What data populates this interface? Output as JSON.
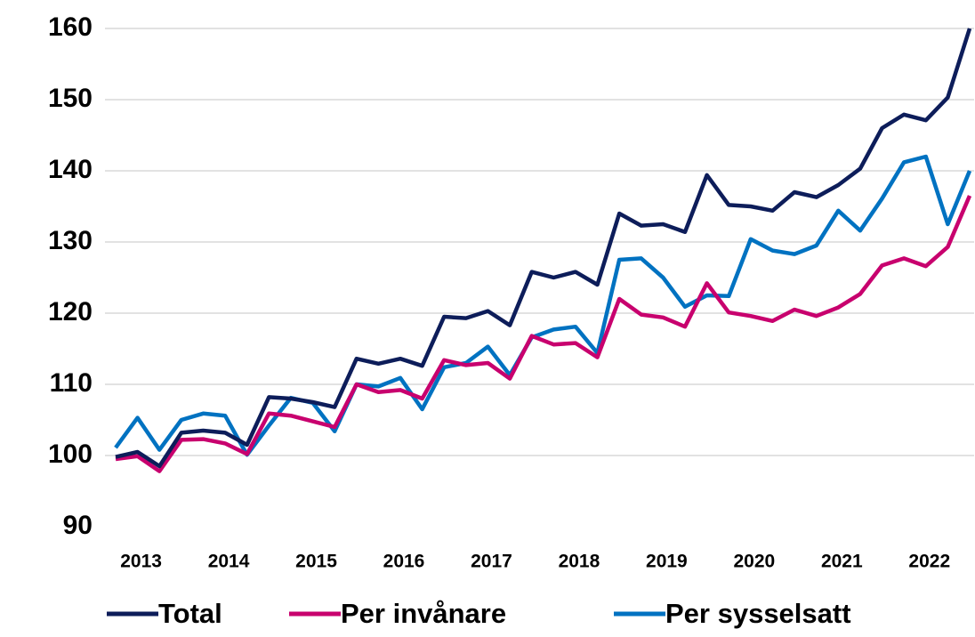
{
  "chart_data": {
    "type": "line",
    "categories": [
      null,
      "2013",
      null,
      null,
      null,
      "2014",
      null,
      null,
      null,
      "2015",
      null,
      null,
      null,
      "2016",
      null,
      null,
      null,
      "2017",
      null,
      null,
      null,
      "2018",
      null,
      null,
      null,
      "2019",
      null,
      null,
      null,
      "2020",
      null,
      null,
      null,
      "2021",
      null,
      null,
      null,
      "2022",
      null,
      null
    ],
    "series": [
      {
        "name": "Total",
        "color": "#0d1d5a",
        "values": [
          99.8,
          100.5,
          98.5,
          103.2,
          103.5,
          103.2,
          101.5,
          108.2,
          108,
          107.5,
          106.8,
          113.6,
          112.9,
          113.6,
          112.6,
          119.5,
          119.3,
          120.3,
          118.3,
          125.8,
          125,
          125.8,
          124,
          134,
          132.3,
          132.5,
          131.4,
          139.4,
          135.2,
          135,
          134.4,
          137,
          136.3,
          138,
          140.3,
          146,
          147.9,
          147.1,
          150.3,
          160
        ]
      },
      {
        "name": "Per invånare",
        "color": "#c8006e",
        "values": [
          99.5,
          99.9,
          97.8,
          102.2,
          102.3,
          101.7,
          100.2,
          105.9,
          105.6,
          104.8,
          104,
          110,
          108.9,
          109.2,
          108,
          113.4,
          112.7,
          113,
          110.8,
          116.8,
          115.6,
          115.8,
          113.8,
          122,
          119.8,
          119.4,
          118.1,
          124.2,
          120.1,
          119.6,
          118.9,
          120.5,
          119.6,
          120.8,
          122.7,
          126.7,
          127.7,
          126.6,
          129.3,
          136.5
        ]
      },
      {
        "name": "Per sysselsatt",
        "color": "#0072c1",
        "values": [
          101.1,
          105.3,
          100.8,
          105,
          105.9,
          105.6,
          100.1,
          104.2,
          108.1,
          107.4,
          103.4,
          110,
          109.7,
          110.9,
          106.5,
          112.4,
          113,
          115.3,
          111.3,
          116.6,
          117.7,
          118.1,
          114.4,
          127.5,
          127.7,
          125,
          120.9,
          122.5,
          122.4,
          130.4,
          128.8,
          128.3,
          129.5,
          134.4,
          131.6,
          136.1,
          141.2,
          142,
          132.5,
          140
        ]
      }
    ],
    "ylim": [
      90,
      160
    ],
    "yticks": [
      90,
      100,
      110,
      120,
      130,
      140,
      150,
      160
    ],
    "grid": true,
    "legend": "bottom"
  }
}
